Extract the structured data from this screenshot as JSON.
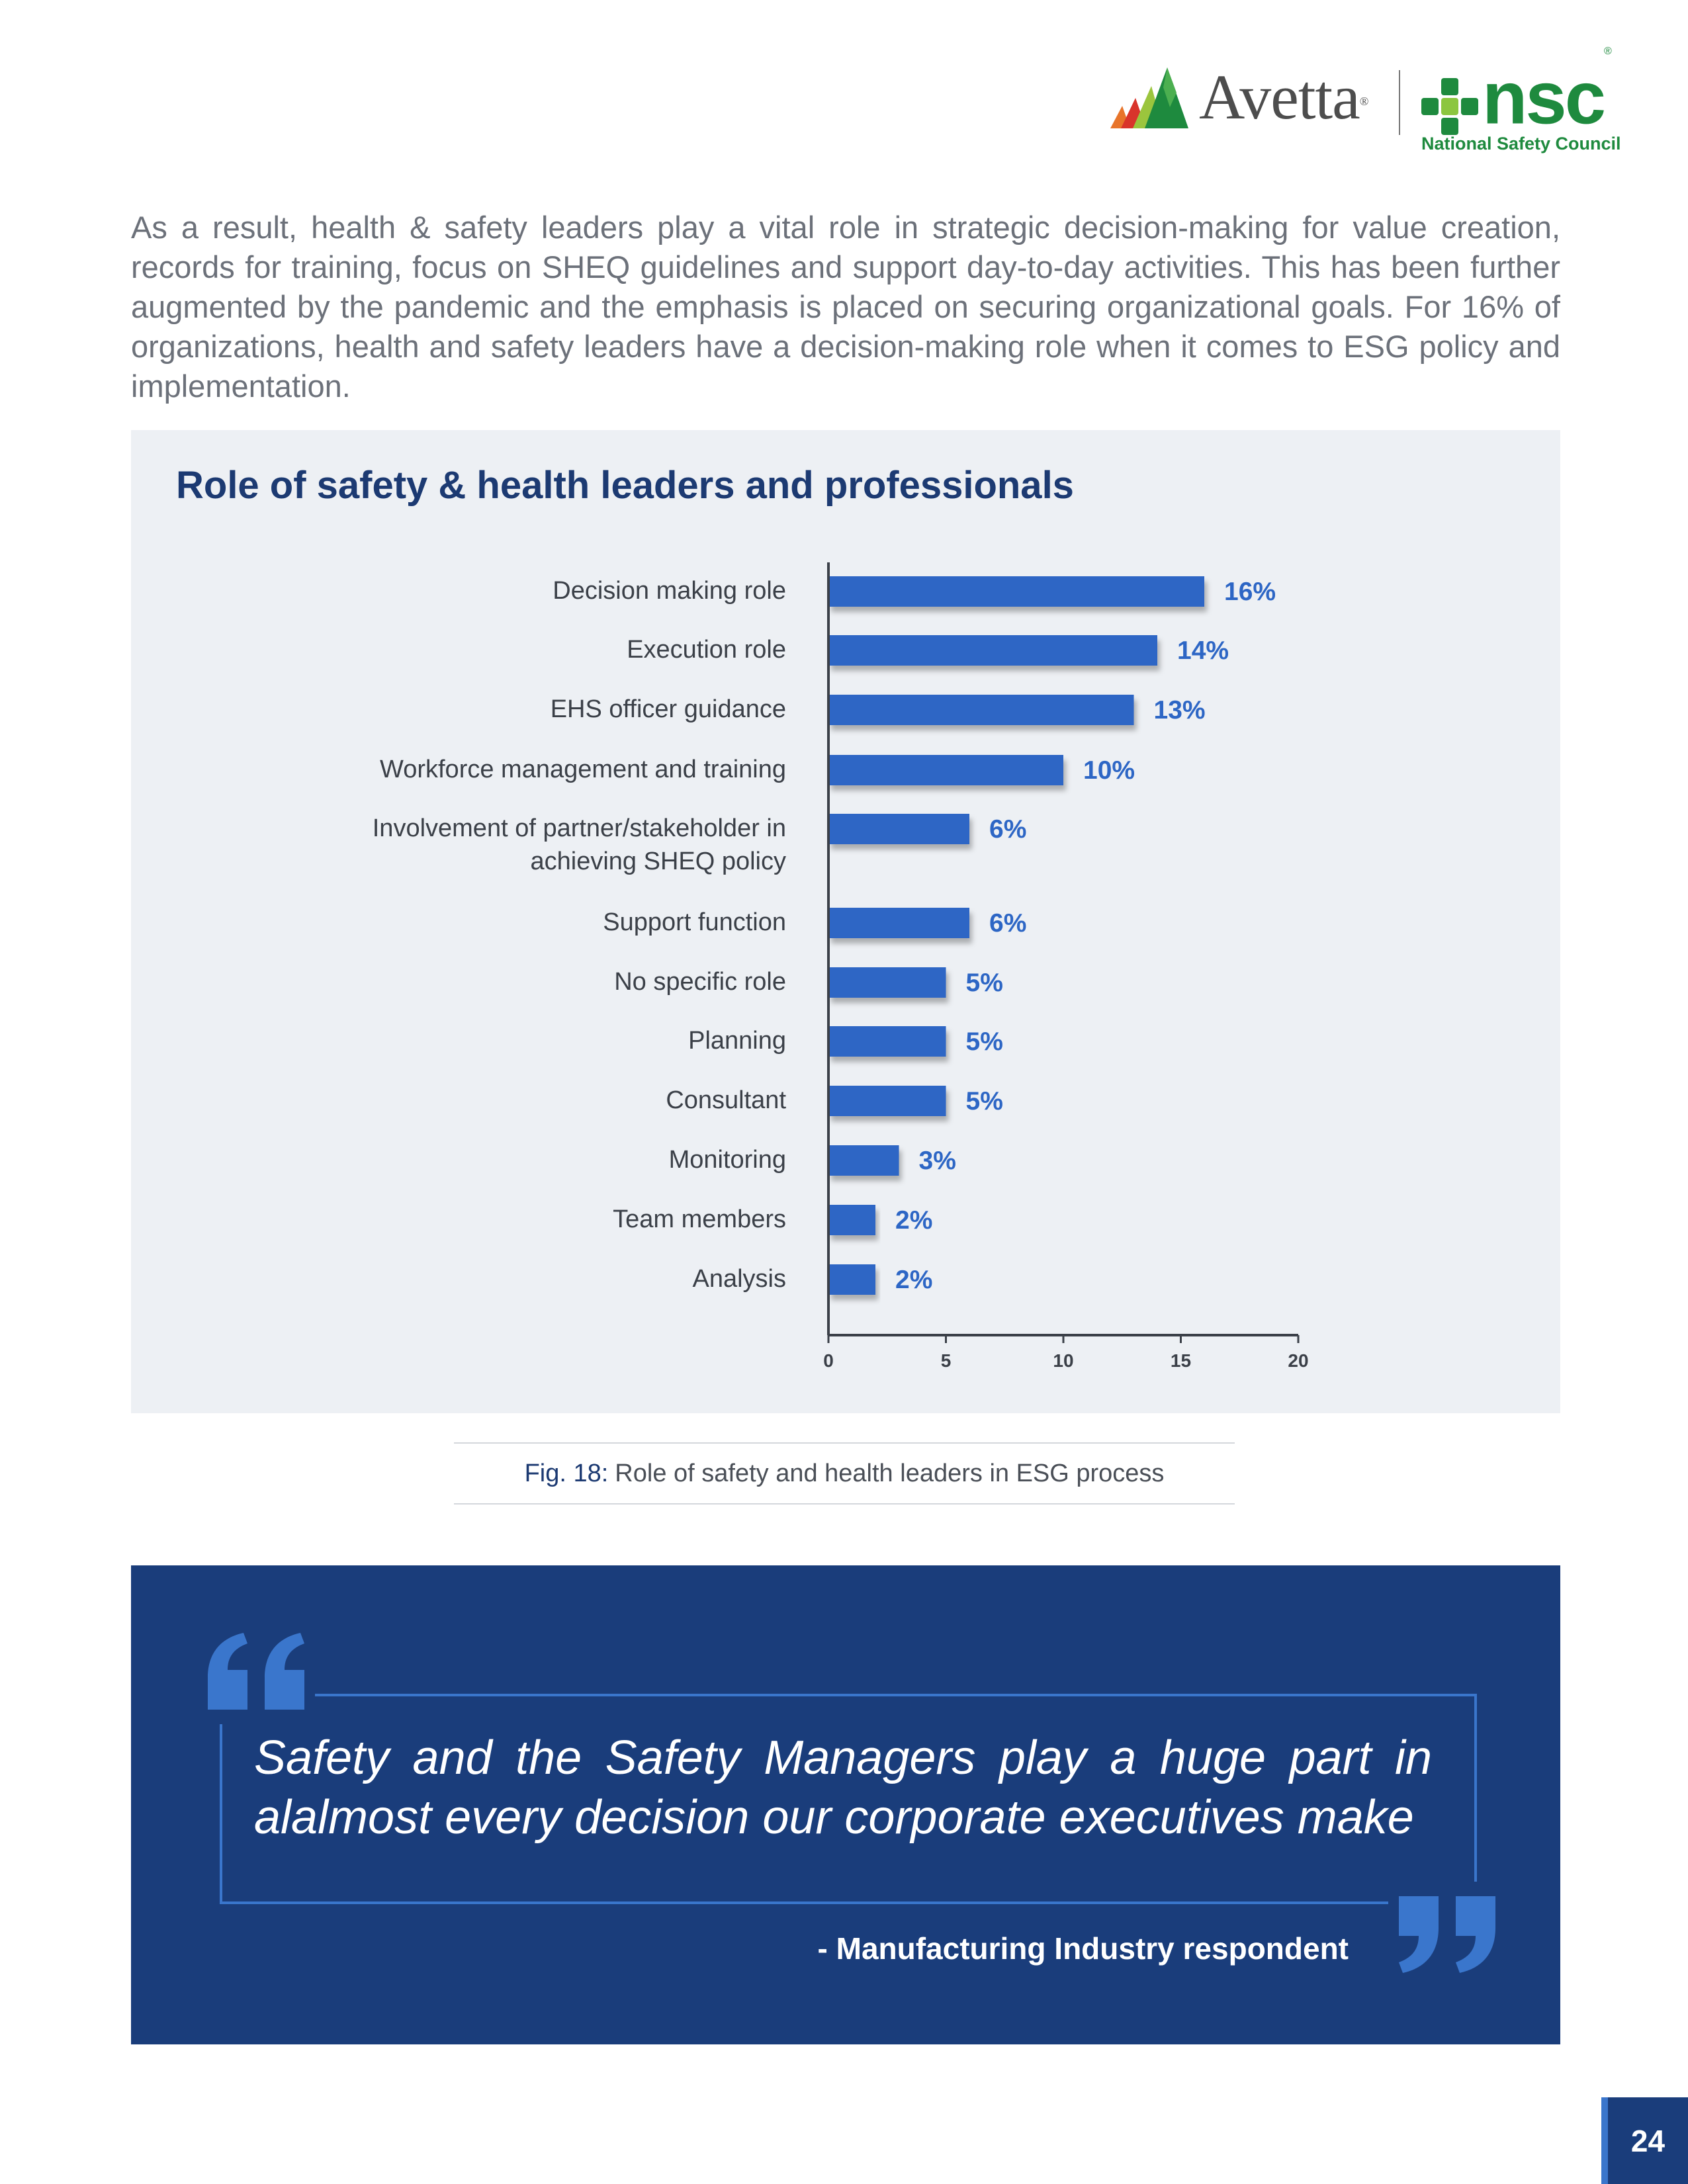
{
  "header": {
    "avetta_logo": "Avetta",
    "avetta_reg": "®",
    "nsc_logo": "nsc",
    "nsc_reg": "®",
    "nsc_tagline": "National Safety Council"
  },
  "intro_paragraph": "As a result, health & safety leaders play a vital role in strategic decision-making for value creation, records for training, focus on SHEQ guidelines and support day-to-day activities. This has been further augmented by the pandemic and the emphasis is placed on securing organizational goals. For 16% of organizations, health and safety leaders have a decision-making role when it comes to ESG policy and implementation.",
  "chart_data": {
    "type": "bar",
    "orientation": "horizontal",
    "title": "Role of safety & health leaders and professionals",
    "categories": [
      "Decision making role",
      "Execution role",
      "EHS officer guidance",
      "Workforce management and training",
      "Involvement of partner/stakeholder in achieving SHEQ policy",
      "Support function",
      "No specific role",
      "Planning",
      "Consultant",
      "Monitoring",
      "Team members",
      "Analysis"
    ],
    "category_lines": [
      [
        "Decision making role"
      ],
      [
        "Execution role"
      ],
      [
        "EHS officer guidance"
      ],
      [
        "Workforce management and training"
      ],
      [
        "Involvement of partner/stakeholder in",
        "achieving SHEQ policy"
      ],
      [
        "Support function"
      ],
      [
        "No specific role"
      ],
      [
        "Planning"
      ],
      [
        "Consultant"
      ],
      [
        "Monitoring"
      ],
      [
        "Team members"
      ],
      [
        "Analysis"
      ]
    ],
    "values": [
      16,
      14,
      13,
      10,
      6,
      6,
      5,
      5,
      5,
      3,
      2,
      2
    ],
    "data_labels": [
      "16%",
      "14%",
      "13%",
      "10%",
      "6%",
      "6%",
      "5%",
      "5%",
      "5%",
      "3%",
      "2%",
      "2%"
    ],
    "xlim": [
      0,
      20
    ],
    "xticks": [
      "0",
      "5",
      "10",
      "15",
      "20"
    ],
    "xlabel": "",
    "ylabel": "",
    "grid": false,
    "legend": "none",
    "colors": {
      "bar": "#2d66c5",
      "label": "#2d66c5",
      "axis": "#3b4048"
    }
  },
  "caption": {
    "fig_num": "Fig. 18:",
    "text": "Role of safety and health leaders in ESG process"
  },
  "quote": {
    "text": "Safety and the Safety Managers play a huge part in alalmost every decision our corporate executives make",
    "author": "- Manufacturing Industry respondent"
  },
  "page_number": "24",
  "colors": {
    "navy": "#1a3d7b",
    "accent_blue": "#3a76cc",
    "title_navy": "#1c3a72",
    "panel_gray": "#edf0f4",
    "nsc_green": "#1e8a3e"
  },
  "icons": {
    "avetta_mark": "avetta-mountain-icon",
    "nsc_mark": "nsc-cross-icon",
    "quote_open": "open-quote-icon",
    "quote_close": "close-quote-icon"
  }
}
